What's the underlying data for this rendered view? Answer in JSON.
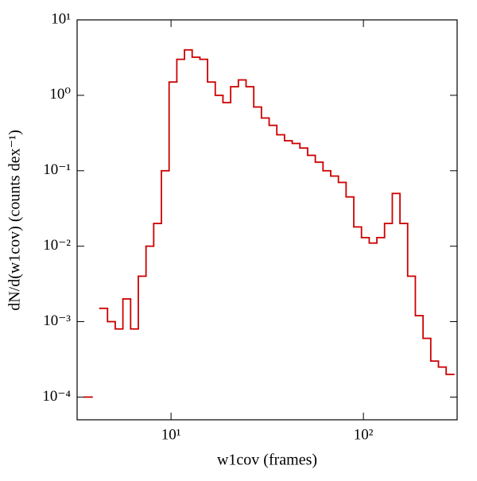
{
  "chart_data": {
    "type": "histogram",
    "xlabel": "w1cov (frames)",
    "ylabel": "dN/d(w1cov) (counts dex⁻¹)",
    "xscale": "log",
    "yscale": "log",
    "color": "#cc0000",
    "bins": [
      3.548,
      3.89,
      4.266,
      4.677,
      5.129,
      5.623,
      6.166,
      6.761,
      7.413,
      8.128,
      8.913,
      9.772,
      10.72,
      11.75,
      12.88,
      14.13,
      15.49,
      16.98,
      18.62,
      20.42,
      22.39,
      24.55,
      26.92,
      29.51,
      32.36,
      35.48,
      38.9,
      42.66,
      46.77,
      51.29,
      56.23,
      61.66,
      67.61,
      74.13,
      81.28,
      89.13,
      97.72,
      107.2,
      117.5,
      128.8,
      141.3,
      154.9,
      169.8,
      186.2,
      204.2,
      223.9,
      245.5,
      269.2,
      295.1
    ],
    "values": [
      0.0001,
      null,
      0.0015,
      0.001,
      0.0008,
      0.002,
      0.0008,
      0.004,
      0.01,
      0.02,
      0.1,
      1.5,
      3,
      4,
      3.2,
      3,
      1.5,
      1,
      0.8,
      1.3,
      1.6,
      1.3,
      0.7,
      0.5,
      0.4,
      0.3,
      0.25,
      0.23,
      0.2,
      0.16,
      0.13,
      0.1,
      0.085,
      0.07,
      0.045,
      0.018,
      0.013,
      0.011,
      0.013,
      0.02,
      0.05,
      0.02,
      0.004,
      0.0012,
      0.0006,
      0.0003,
      0.00025,
      0.0002
    ],
    "xlim": [
      3.25,
      307
    ],
    "ylim": [
      5e-05,
      10
    ],
    "xticks": [
      {
        "value": 10,
        "label": "10¹"
      },
      {
        "value": 100,
        "label": "10²"
      }
    ],
    "yticks": [
      {
        "value": 0.0001,
        "label": "10⁻⁴"
      },
      {
        "value": 0.001,
        "label": "10⁻³"
      },
      {
        "value": 0.01,
        "label": "10⁻²"
      },
      {
        "value": 0.1,
        "label": "10⁻¹"
      },
      {
        "value": 1,
        "label": "10⁰"
      },
      {
        "value": 10,
        "label": "10¹"
      }
    ]
  }
}
